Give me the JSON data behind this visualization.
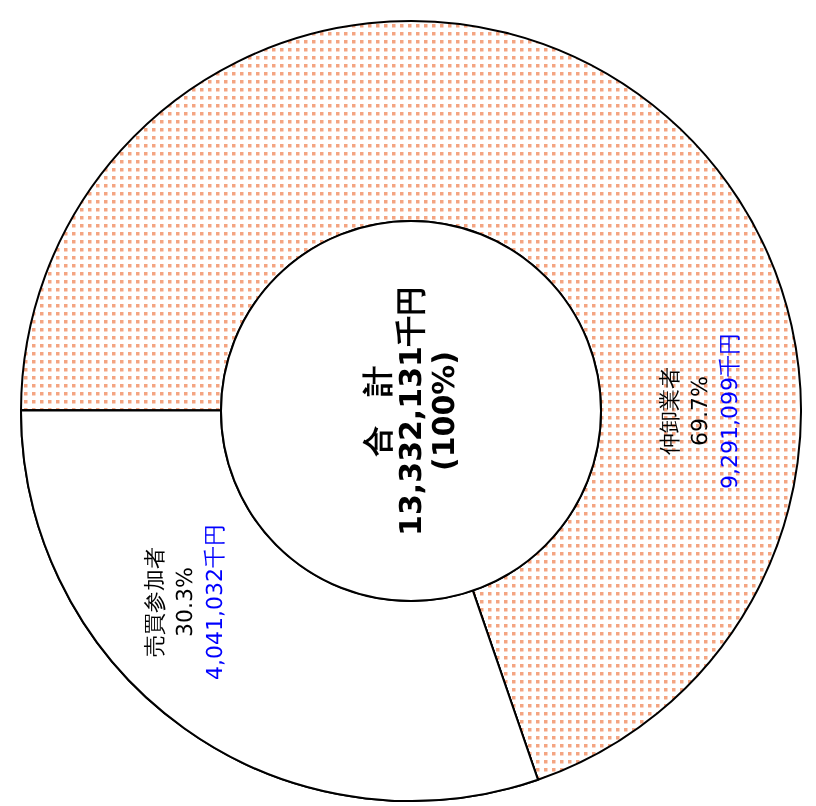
{
  "chart_data": {
    "type": "donut",
    "categories": [
      "仲卸業者",
      "売買参加者"
    ],
    "values": [
      9291099,
      4041032
    ],
    "value_labels": [
      "69.7%\n9,291,099千円",
      "30.3%\n4,041,032千円"
    ],
    "colors": [
      "#f4a582",
      "#ffffff"
    ],
    "annotations": [
      "合　計",
      "13,332,131千円",
      "(100%)"
    ]
  }
}
